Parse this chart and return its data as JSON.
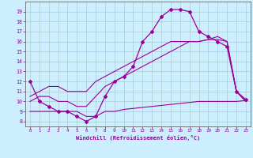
{
  "xlabel": "Windchill (Refroidissement éolien,°C)",
  "bg_color": "#cceeff",
  "grid_color": "#aacccc",
  "line_color": "#990099",
  "spine_color": "#666666",
  "xlim": [
    -0.5,
    23.5
  ],
  "ylim": [
    7.5,
    20.0
  ],
  "xticks": [
    0,
    1,
    2,
    3,
    4,
    5,
    6,
    7,
    8,
    9,
    10,
    11,
    12,
    13,
    14,
    15,
    16,
    17,
    18,
    19,
    20,
    21,
    22,
    23
  ],
  "yticks": [
    8,
    9,
    10,
    11,
    12,
    13,
    14,
    15,
    16,
    17,
    18,
    19
  ],
  "curve1_x": [
    0,
    1,
    2,
    3,
    4,
    5,
    6,
    7,
    8,
    9,
    10,
    11,
    12,
    13,
    14,
    15,
    16,
    17,
    18,
    19,
    20,
    21,
    22,
    23
  ],
  "curve1_y": [
    12,
    10,
    9.5,
    9,
    9,
    8.5,
    8,
    8.5,
    10.5,
    12,
    12.5,
    13.5,
    16,
    17,
    18.5,
    19.2,
    19.2,
    19,
    17,
    16.5,
    16,
    15.5,
    11,
    10.2
  ],
  "curve2_x": [
    0,
    1,
    2,
    3,
    4,
    5,
    6,
    7,
    8,
    9,
    10,
    11,
    12,
    13,
    14,
    15,
    16,
    17,
    18,
    19,
    20,
    21,
    22,
    23
  ],
  "curve2_y": [
    9.0,
    9.0,
    9.0,
    9.0,
    9.0,
    9.0,
    8.5,
    8.5,
    9.0,
    9.0,
    9.2,
    9.3,
    9.4,
    9.5,
    9.6,
    9.7,
    9.8,
    9.9,
    10.0,
    10.0,
    10.0,
    10.0,
    10.0,
    10.1
  ],
  "curve3_x": [
    0,
    1,
    2,
    3,
    4,
    5,
    6,
    7,
    8,
    9,
    10,
    11,
    12,
    13,
    14,
    15,
    16,
    17,
    18,
    19,
    20,
    21,
    22,
    23
  ],
  "curve3_y": [
    10.0,
    10.5,
    10.5,
    10.0,
    10.0,
    9.5,
    9.5,
    10.5,
    11.5,
    12.0,
    12.5,
    13.0,
    13.5,
    14.0,
    14.5,
    15.0,
    15.5,
    16.0,
    16.0,
    16.2,
    16.5,
    16.0,
    11.0,
    10.0
  ],
  "curve4_x": [
    0,
    1,
    2,
    3,
    4,
    5,
    6,
    7,
    8,
    9,
    10,
    11,
    12,
    13,
    14,
    15,
    16,
    17,
    18,
    19,
    20,
    21,
    22,
    23
  ],
  "curve4_y": [
    10.5,
    11.0,
    11.5,
    11.5,
    11.0,
    11.0,
    11.0,
    12.0,
    12.5,
    13.0,
    13.5,
    14.0,
    14.5,
    15.0,
    15.5,
    16.0,
    16.0,
    16.0,
    16.0,
    16.2,
    16.2,
    16.0,
    11.0,
    10.0
  ]
}
